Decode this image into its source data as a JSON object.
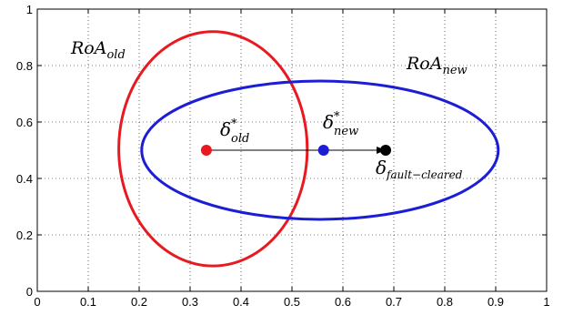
{
  "chart_data": {
    "type": "scatter",
    "title": "",
    "xlabel": "",
    "ylabel": "",
    "xlim": [
      0,
      1
    ],
    "ylim": [
      0,
      1
    ],
    "grid": true,
    "x_ticks": [
      "0",
      "0.1",
      "0.2",
      "0.3",
      "0.4",
      "0.5",
      "0.6",
      "0.7",
      "0.8",
      "0.9",
      "1"
    ],
    "y_ticks": [
      "0",
      "0.2",
      "0.4",
      "0.6",
      "0.8",
      "1"
    ],
    "ellipses": [
      {
        "name": "RoA_old",
        "color": "#e8191f",
        "cx": 0.345,
        "cy": 0.505,
        "rx": 0.185,
        "ry": 0.415
      },
      {
        "name": "RoA_new",
        "color": "#1c1ed6",
        "cx": 0.555,
        "cy": 0.5,
        "rx": 0.35,
        "ry": 0.245
      }
    ],
    "points": [
      {
        "name": "delta_old_star",
        "x": 0.332,
        "y": 0.5,
        "color": "#e8191f"
      },
      {
        "name": "delta_new_star",
        "x": 0.562,
        "y": 0.5,
        "color": "#1c1ed6"
      },
      {
        "name": "delta_fault_cleared",
        "x": 0.684,
        "y": 0.5,
        "color": "#000000"
      }
    ],
    "arrow": {
      "from": [
        0.332,
        0.5
      ],
      "to": [
        0.684,
        0.5
      ],
      "color": "#000000"
    },
    "annotations": {
      "roa_old": {
        "main": "RoA",
        "sub": "old"
      },
      "roa_new": {
        "main": "RoA",
        "sub": "new"
      },
      "delta_old": {
        "main": "δ",
        "sup": "*",
        "sub": "old"
      },
      "delta_new": {
        "main": "δ",
        "sup": "*",
        "sub": "new"
      },
      "delta_fault": {
        "main": "δ",
        "sub": "fault−cleared"
      }
    }
  }
}
